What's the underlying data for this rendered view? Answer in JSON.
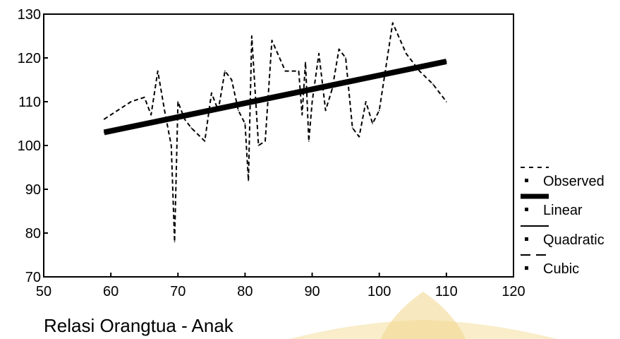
{
  "chart_data": {
    "type": "line",
    "xlabel": "Relasi Orangtua - Anak",
    "ylabel": "",
    "xlim": [
      50,
      120
    ],
    "ylim": [
      70,
      130
    ],
    "x_ticks": [
      "50",
      "60",
      "70",
      "80",
      "90",
      "100",
      "110",
      "120"
    ],
    "y_ticks": [
      "130",
      "120",
      "110",
      "100",
      "90",
      "80",
      "70"
    ],
    "series": [
      {
        "name": "Observed",
        "style": "dashed",
        "x": [
          59,
          61,
          63,
          65,
          66,
          67,
          68,
          69,
          69.5,
          70,
          71,
          72,
          74,
          75,
          76,
          77,
          78,
          79,
          80,
          80.5,
          81,
          82,
          83,
          84,
          86,
          88,
          88.5,
          89,
          89.5,
          90,
          91,
          92,
          93,
          94,
          95,
          96,
          97,
          98,
          99,
          100,
          101,
          102,
          104,
          106,
          108,
          110
        ],
        "y": [
          106,
          108,
          110,
          111,
          107,
          117,
          108,
          100,
          78,
          110,
          106,
          104,
          101,
          112,
          108,
          117,
          115,
          108,
          105,
          92,
          125,
          100,
          101,
          124,
          117,
          117,
          107,
          119,
          101,
          110,
          121,
          108,
          113,
          122,
          120,
          104,
          102,
          110,
          105,
          108,
          118,
          128,
          121,
          117,
          114,
          110
        ]
      },
      {
        "name": "Linear",
        "style": "solid-thick",
        "x": [
          59,
          110
        ],
        "y": [
          103,
          119.2
        ]
      },
      {
        "name": "Quadratic",
        "style": "solid",
        "x": [],
        "y": []
      },
      {
        "name": "Cubic",
        "style": "dashed",
        "x": [],
        "y": []
      }
    ],
    "legend": [
      "Observed",
      "Linear",
      "Quadratic",
      "Cubic"
    ],
    "legend_position": "right",
    "colors": {
      "line": "#000000",
      "watermark": "#f1d68a"
    }
  }
}
